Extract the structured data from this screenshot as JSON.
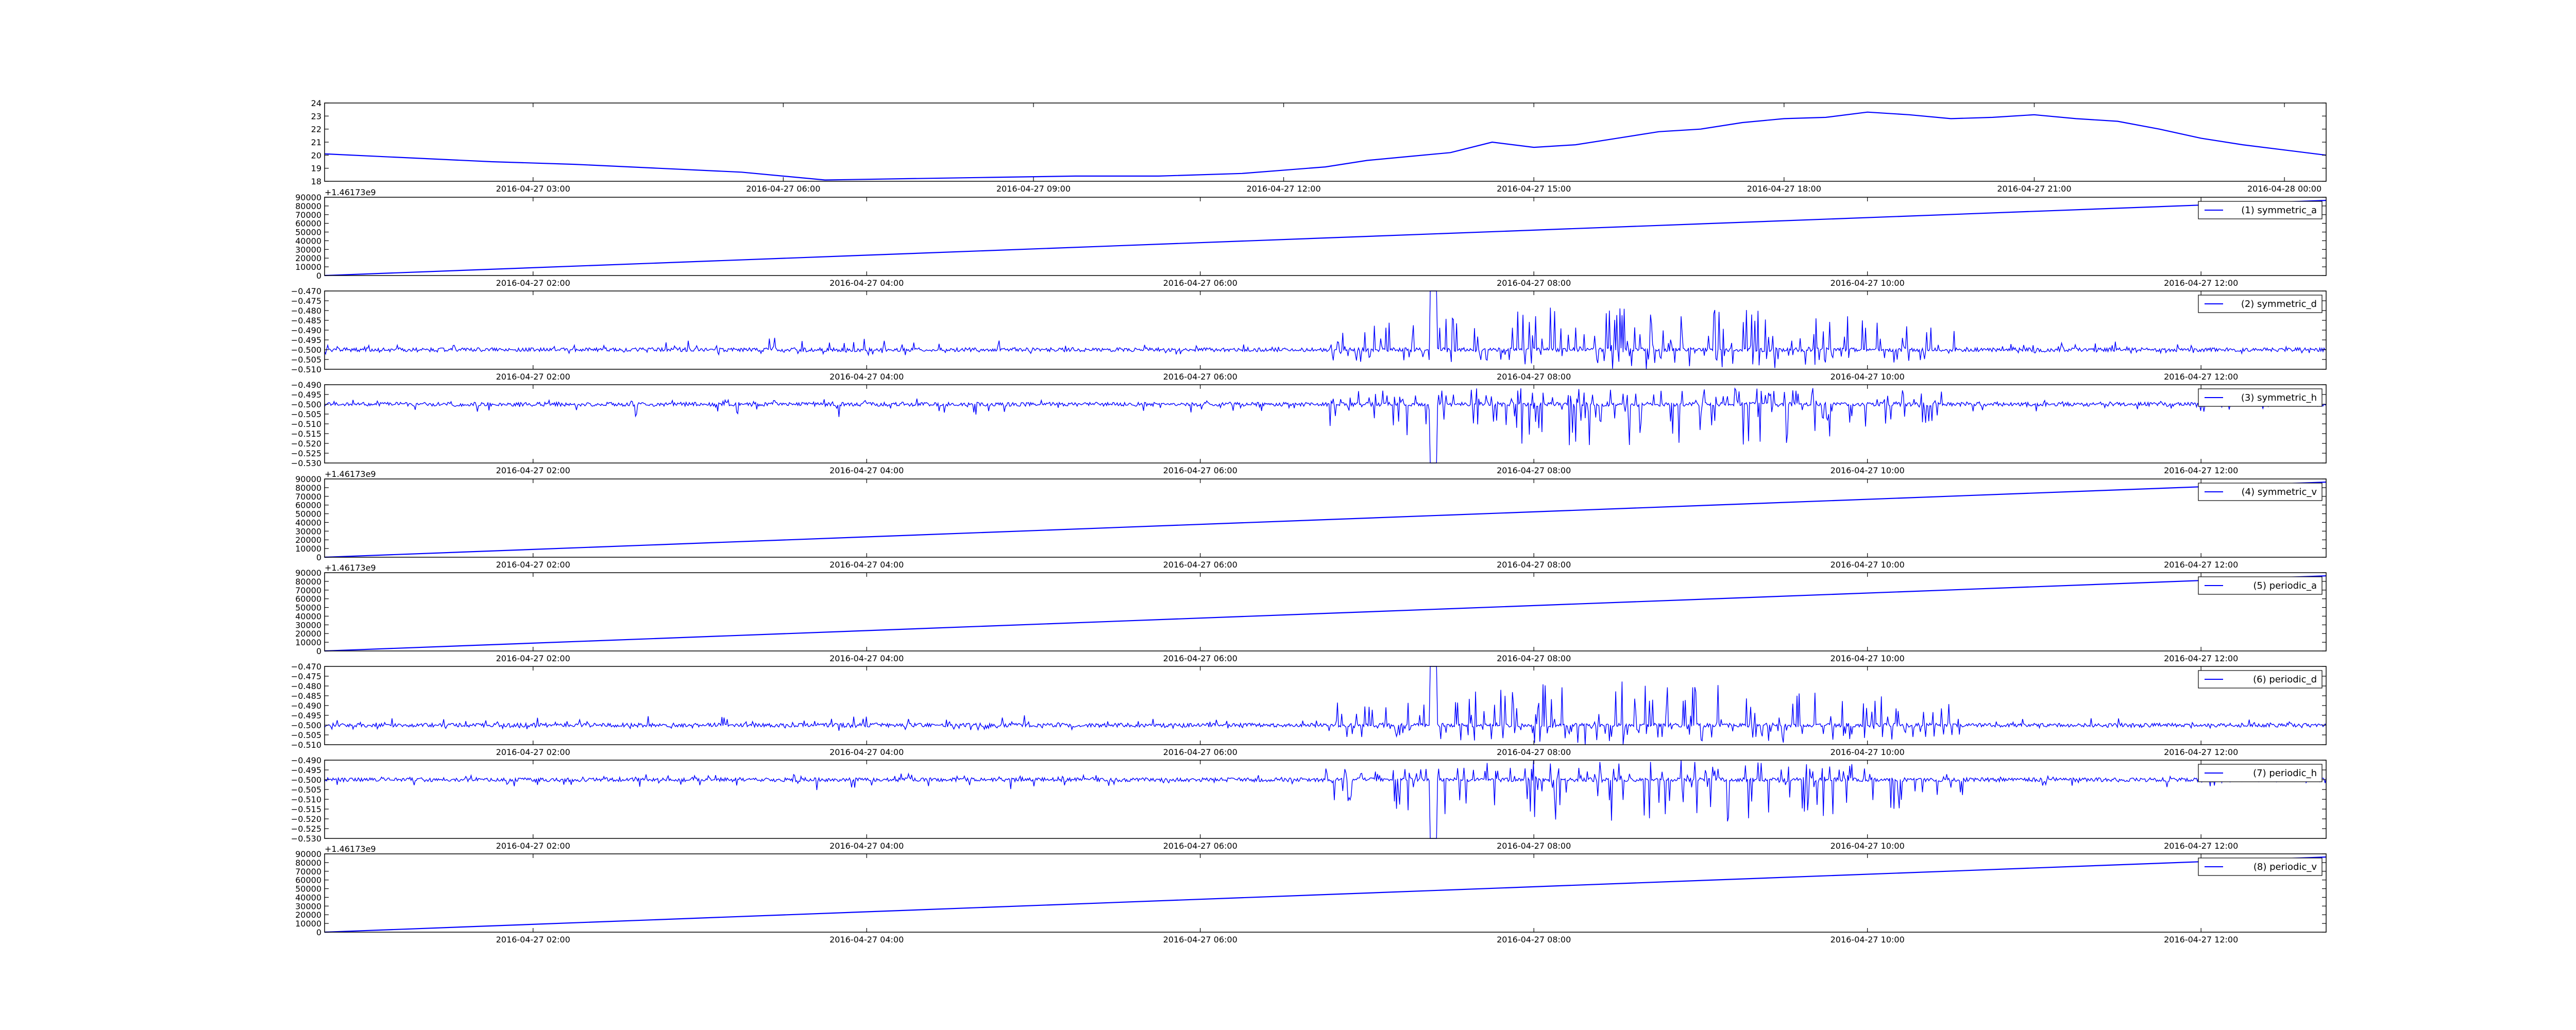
{
  "chart_data": [
    {
      "type": "line",
      "title": "",
      "xlabel": "",
      "ylabel": "",
      "xlim": [
        "2016-04-27 00:30",
        "2016-04-28 00:30"
      ],
      "ylim": [
        18,
        24
      ],
      "yticks": [
        "18",
        "19",
        "20",
        "21",
        "22",
        "23",
        "24"
      ],
      "xticks": [
        "2016-04-27 03:00",
        "2016-04-27 06:00",
        "2016-04-27 09:00",
        "2016-04-27 12:00",
        "2016-04-27 15:00",
        "2016-04-27 18:00",
        "2016-04-27 21:00",
        "2016-04-28 00:00"
      ],
      "y_offset_label": "",
      "legend": null,
      "color": "#0000ff",
      "series": [
        {
          "name": "",
          "x": [
            "2016-04-27 00:30",
            "2016-04-27 01:30",
            "2016-04-27 02:30",
            "2016-04-27 03:30",
            "2016-04-27 04:30",
            "2016-04-27 05:30",
            "2016-04-27 06:30",
            "2016-04-27 07:30",
            "2016-04-27 08:30",
            "2016-04-27 09:30",
            "2016-04-27 10:30",
            "2016-04-27 11:30",
            "2016-04-27 12:30",
            "2016-04-27 13:00",
            "2016-04-27 13:30",
            "2016-04-27 14:00",
            "2016-04-27 14:30",
            "2016-04-27 15:00",
            "2016-04-27 15:30",
            "2016-04-27 16:00",
            "2016-04-27 16:30",
            "2016-04-27 17:00",
            "2016-04-27 17:30",
            "2016-04-27 18:00",
            "2016-04-27 18:30",
            "2016-04-27 19:00",
            "2016-04-27 19:30",
            "2016-04-27 20:00",
            "2016-04-27 20:30",
            "2016-04-27 21:00",
            "2016-04-27 21:30",
            "2016-04-27 22:00",
            "2016-04-27 22:30",
            "2016-04-27 23:00",
            "2016-04-27 23:30",
            "2016-04-28 00:30"
          ],
          "y": [
            20.1,
            19.8,
            19.5,
            19.3,
            19.0,
            18.7,
            18.1,
            18.2,
            18.3,
            18.4,
            18.4,
            18.6,
            19.1,
            19.6,
            19.9,
            20.2,
            21.0,
            20.6,
            20.8,
            21.3,
            21.8,
            22.0,
            22.5,
            22.8,
            22.9,
            23.3,
            23.1,
            22.8,
            22.9,
            23.1,
            22.8,
            22.6,
            22.0,
            21.3,
            20.8,
            20.0
          ]
        }
      ]
    },
    {
      "type": "line",
      "title": "",
      "xlabel": "",
      "ylabel": "",
      "xlim": [
        "2016-04-27 00:45",
        "2016-04-27 12:45"
      ],
      "ylim": [
        0,
        90000
      ],
      "yticks": [
        "0",
        "10000",
        "20000",
        "30000",
        "40000",
        "50000",
        "60000",
        "70000",
        "80000",
        "90000"
      ],
      "xticks": [
        "2016-04-27 02:00",
        "2016-04-27 04:00",
        "2016-04-27 06:00",
        "2016-04-27 08:00",
        "2016-04-27 10:00",
        "2016-04-27 12:00"
      ],
      "y_offset_label": "+1.46173e9",
      "legend": {
        "label": "(1) symmetric_a",
        "placement": "top-right"
      },
      "color": "#0000ff",
      "series": [
        {
          "name": "(1) symmetric_a",
          "x": [
            "2016-04-27 00:45",
            "2016-04-27 12:45"
          ],
          "y": [
            0,
            86400
          ]
        }
      ]
    },
    {
      "type": "line",
      "title": "",
      "xlabel": "",
      "ylabel": "",
      "xlim": [
        "2016-04-27 00:45",
        "2016-04-27 12:45"
      ],
      "ylim": [
        -0.51,
        -0.47
      ],
      "yticks": [
        "−0.510",
        "−0.505",
        "−0.500",
        "−0.495",
        "−0.490",
        "−0.485",
        "−0.480",
        "−0.475",
        "−0.470"
      ],
      "xticks": [
        "2016-04-27 02:00",
        "2016-04-27 04:00",
        "2016-04-27 06:00",
        "2016-04-27 08:00",
        "2016-04-27 10:00",
        "2016-04-27 12:00"
      ],
      "y_offset_label": "",
      "legend": {
        "label": "(2) symmetric_d",
        "placement": "top-right"
      },
      "color": "#0000ff",
      "series": [
        {
          "name": "(2) symmetric_d",
          "signal": {
            "base": -0.5,
            "dir": 1,
            "amp_scale": 1
          }
        }
      ]
    },
    {
      "type": "line",
      "title": "",
      "xlabel": "",
      "ylabel": "",
      "xlim": [
        "2016-04-27 00:45",
        "2016-04-27 12:45"
      ],
      "ylim": [
        -0.53,
        -0.49
      ],
      "yticks": [
        "−0.530",
        "−0.525",
        "−0.520",
        "−0.515",
        "−0.510",
        "−0.505",
        "−0.500",
        "−0.495",
        "−0.490"
      ],
      "xticks": [
        "2016-04-27 02:00",
        "2016-04-27 04:00",
        "2016-04-27 06:00",
        "2016-04-27 08:00",
        "2016-04-27 10:00",
        "2016-04-27 12:00"
      ],
      "y_offset_label": "",
      "legend": {
        "label": "(3) symmetric_h",
        "placement": "top-right"
      },
      "color": "#0000ff",
      "series": [
        {
          "name": "(3) symmetric_h",
          "signal": {
            "base": -0.5,
            "dir": -1,
            "amp_scale": 1
          }
        }
      ]
    },
    {
      "type": "line",
      "title": "",
      "xlabel": "",
      "ylabel": "",
      "xlim": [
        "2016-04-27 00:45",
        "2016-04-27 12:45"
      ],
      "ylim": [
        0,
        90000
      ],
      "yticks": [
        "0",
        "10000",
        "20000",
        "30000",
        "40000",
        "50000",
        "60000",
        "70000",
        "80000",
        "90000"
      ],
      "xticks": [
        "2016-04-27 02:00",
        "2016-04-27 04:00",
        "2016-04-27 06:00",
        "2016-04-27 08:00",
        "2016-04-27 10:00",
        "2016-04-27 12:00"
      ],
      "y_offset_label": "+1.46173e9",
      "legend": {
        "label": "(4) symmetric_v",
        "placement": "top-right"
      },
      "color": "#0000ff",
      "series": [
        {
          "name": "(4) symmetric_v",
          "x": [
            "2016-04-27 00:45",
            "2016-04-27 12:45"
          ],
          "y": [
            0,
            86400
          ]
        }
      ]
    },
    {
      "type": "line",
      "title": "",
      "xlabel": "",
      "ylabel": "",
      "xlim": [
        "2016-04-27 00:45",
        "2016-04-27 12:45"
      ],
      "ylim": [
        0,
        90000
      ],
      "yticks": [
        "0",
        "10000",
        "20000",
        "30000",
        "40000",
        "50000",
        "60000",
        "70000",
        "80000",
        "90000"
      ],
      "xticks": [
        "2016-04-27 02:00",
        "2016-04-27 04:00",
        "2016-04-27 06:00",
        "2016-04-27 08:00",
        "2016-04-27 10:00",
        "2016-04-27 12:00"
      ],
      "y_offset_label": "+1.46173e9",
      "legend": {
        "label": "(5) periodic_a",
        "placement": "top-right"
      },
      "color": "#0000ff",
      "series": [
        {
          "name": "(5) periodic_a",
          "x": [
            "2016-04-27 00:45",
            "2016-04-27 12:45"
          ],
          "y": [
            0,
            86400
          ]
        }
      ]
    },
    {
      "type": "line",
      "title": "",
      "xlabel": "",
      "ylabel": "",
      "xlim": [
        "2016-04-27 00:45",
        "2016-04-27 12:45"
      ],
      "ylim": [
        -0.51,
        -0.47
      ],
      "yticks": [
        "−0.510",
        "−0.505",
        "−0.500",
        "−0.495",
        "−0.490",
        "−0.485",
        "−0.480",
        "−0.475",
        "−0.470"
      ],
      "xticks": [
        "2016-04-27 02:00",
        "2016-04-27 04:00",
        "2016-04-27 06:00",
        "2016-04-27 08:00",
        "2016-04-27 10:00",
        "2016-04-27 12:00"
      ],
      "y_offset_label": "",
      "legend": {
        "label": "(6) periodic_d",
        "placement": "top-right"
      },
      "color": "#0000ff",
      "series": [
        {
          "name": "(6) periodic_d",
          "signal": {
            "base": -0.5,
            "dir": 1,
            "amp_scale": 1
          }
        }
      ]
    },
    {
      "type": "line",
      "title": "",
      "xlabel": "",
      "ylabel": "",
      "xlim": [
        "2016-04-27 00:45",
        "2016-04-27 12:45"
      ],
      "ylim": [
        -0.53,
        -0.49
      ],
      "yticks": [
        "−0.530",
        "−0.525",
        "−0.520",
        "−0.515",
        "−0.510",
        "−0.505",
        "−0.500",
        "−0.495",
        "−0.490"
      ],
      "xticks": [
        "2016-04-27 02:00",
        "2016-04-27 04:00",
        "2016-04-27 06:00",
        "2016-04-27 08:00",
        "2016-04-27 10:00",
        "2016-04-27 12:00"
      ],
      "y_offset_label": "",
      "legend": {
        "label": "(7) periodic_h",
        "placement": "top-right"
      },
      "color": "#0000ff",
      "series": [
        {
          "name": "(7) periodic_h",
          "signal": {
            "base": -0.5,
            "dir": -1,
            "amp_scale": 1
          }
        }
      ]
    },
    {
      "type": "line",
      "title": "",
      "xlabel": "",
      "ylabel": "",
      "xlim": [
        "2016-04-27 00:45",
        "2016-04-27 12:45"
      ],
      "ylim": [
        0,
        90000
      ],
      "yticks": [
        "0",
        "10000",
        "20000",
        "30000",
        "40000",
        "50000",
        "60000",
        "70000",
        "80000",
        "90000"
      ],
      "xticks": [
        "2016-04-27 02:00",
        "2016-04-27 04:00",
        "2016-04-27 06:00",
        "2016-04-27 08:00",
        "2016-04-27 10:00",
        "2016-04-27 12:00"
      ],
      "y_offset_label": "+1.46173e9",
      "legend": {
        "label": "(8) periodic_v",
        "placement": "top-right"
      },
      "color": "#0000ff",
      "series": [
        {
          "name": "(8) periodic_v",
          "x": [
            "2016-04-27 00:45",
            "2016-04-27 12:45"
          ],
          "y": [
            0,
            86400
          ]
        }
      ]
    }
  ]
}
